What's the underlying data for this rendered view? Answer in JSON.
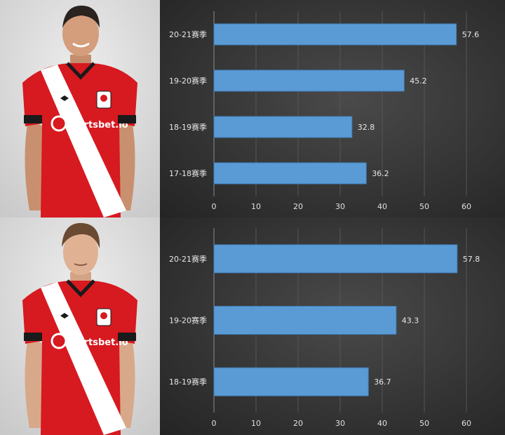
{
  "chart_data": [
    {
      "type": "bar",
      "orientation": "horizontal",
      "categories": [
        "20-21赛季",
        "19-20赛季",
        "18-19赛季",
        "17-18赛季"
      ],
      "values": [
        57.6,
        45.2,
        32.8,
        36.2
      ],
      "xlim": [
        0,
        60
      ],
      "xticks": [
        0,
        10,
        20,
        30,
        40,
        50,
        60
      ],
      "grid": true
    },
    {
      "type": "bar",
      "orientation": "horizontal",
      "categories": [
        "20-21赛季",
        "19-20赛季",
        "18-19赛季"
      ],
      "values": [
        57.8,
        43.3,
        36.7
      ],
      "xlim": [
        0,
        60
      ],
      "xticks": [
        0,
        10,
        20,
        30,
        40,
        50,
        60
      ],
      "grid": true
    }
  ],
  "players": [
    {
      "jersey_sponsor": "Sportsbet.io",
      "hair": "dark"
    },
    {
      "jersey_sponsor": "Sportsbet.io",
      "hair": "light-brown"
    }
  ],
  "colors": {
    "bar": "#5b9bd5",
    "bar_edge": "#3f7fb8",
    "jersey": "#d71920",
    "stripe": "#ffffff",
    "photo_bg": "#dcdcdc"
  }
}
